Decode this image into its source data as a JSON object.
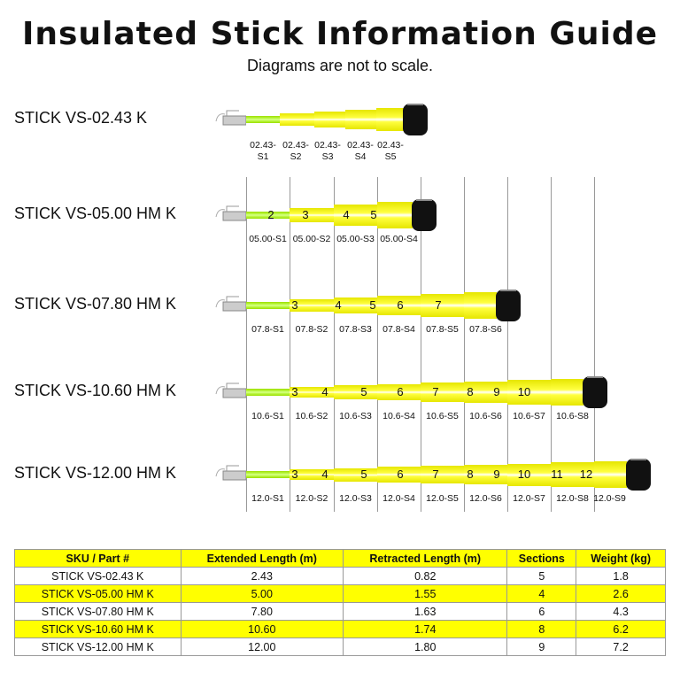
{
  "title": "Insulated Stick Information Guide",
  "subtitle": "Diagrams are not to scale.",
  "sticks": [
    {
      "name": "STICK VS-02.43 K",
      "numbers": [],
      "sections": [
        "02.43-\nS1",
        "02.43-\nS2",
        "02.43-\nS3",
        "02.43-\nS4",
        "02.43-\nS5"
      ]
    },
    {
      "name": "STICK VS-05.00 HM K",
      "numbers": [
        "2",
        "3",
        "4",
        "5"
      ],
      "sections": [
        "05.00-S1",
        "05.00-S2",
        "05.00-S3",
        "05.00-S4"
      ]
    },
    {
      "name": "STICK VS-07.80 HM K",
      "numbers": [
        "3",
        "4",
        "5",
        "6",
        "7"
      ],
      "sections": [
        "07.8-S1",
        "07.8-S2",
        "07.8-S3",
        "07.8-S4",
        "07.8-S5",
        "07.8-S6"
      ]
    },
    {
      "name": "STICK VS-10.60 HM K",
      "numbers": [
        "3",
        "4",
        "5",
        "6",
        "7",
        "8",
        "9",
        "10"
      ],
      "sections": [
        "10.6-S1",
        "10.6-S2",
        "10.6-S3",
        "10.6-S4",
        "10.6-S5",
        "10.6-S6",
        "10.6-S7",
        "10.6-S8"
      ]
    },
    {
      "name": "STICK VS-12.00 HM K",
      "numbers": [
        "3",
        "4",
        "5",
        "6",
        "7",
        "8",
        "9",
        "10",
        "11",
        "12"
      ],
      "sections": [
        "12.0-S1",
        "12.0-S2",
        "12.0-S3",
        "12.0-S4",
        "12.0-S5",
        "12.0-S6",
        "12.0-S7",
        "12.0-S8",
        "12.0-S9"
      ]
    }
  ],
  "table": {
    "headers": [
      "SKU / Part #",
      "Extended Length (m)",
      "Retracted Length (m)",
      "Sections",
      "Weight (kg)"
    ],
    "rows": [
      [
        "STICK VS-02.43 K",
        "2.43",
        "0.82",
        "5",
        "1.8"
      ],
      [
        "STICK VS-05.00 HM K",
        "5.00",
        "1.55",
        "4",
        "2.6"
      ],
      [
        "STICK VS-07.80 HM K",
        "7.80",
        "1.63",
        "6",
        "4.3"
      ],
      [
        "STICK VS-10.60 HM K",
        "10.60",
        "1.74",
        "8",
        "6.2"
      ],
      [
        "STICK VS-12.00 HM K",
        "12.00",
        "1.80",
        "9",
        "7.2"
      ]
    ]
  },
  "colors": {
    "highlight": "#ffff00",
    "insulation": "#ffff33",
    "base": "#a0e000"
  }
}
